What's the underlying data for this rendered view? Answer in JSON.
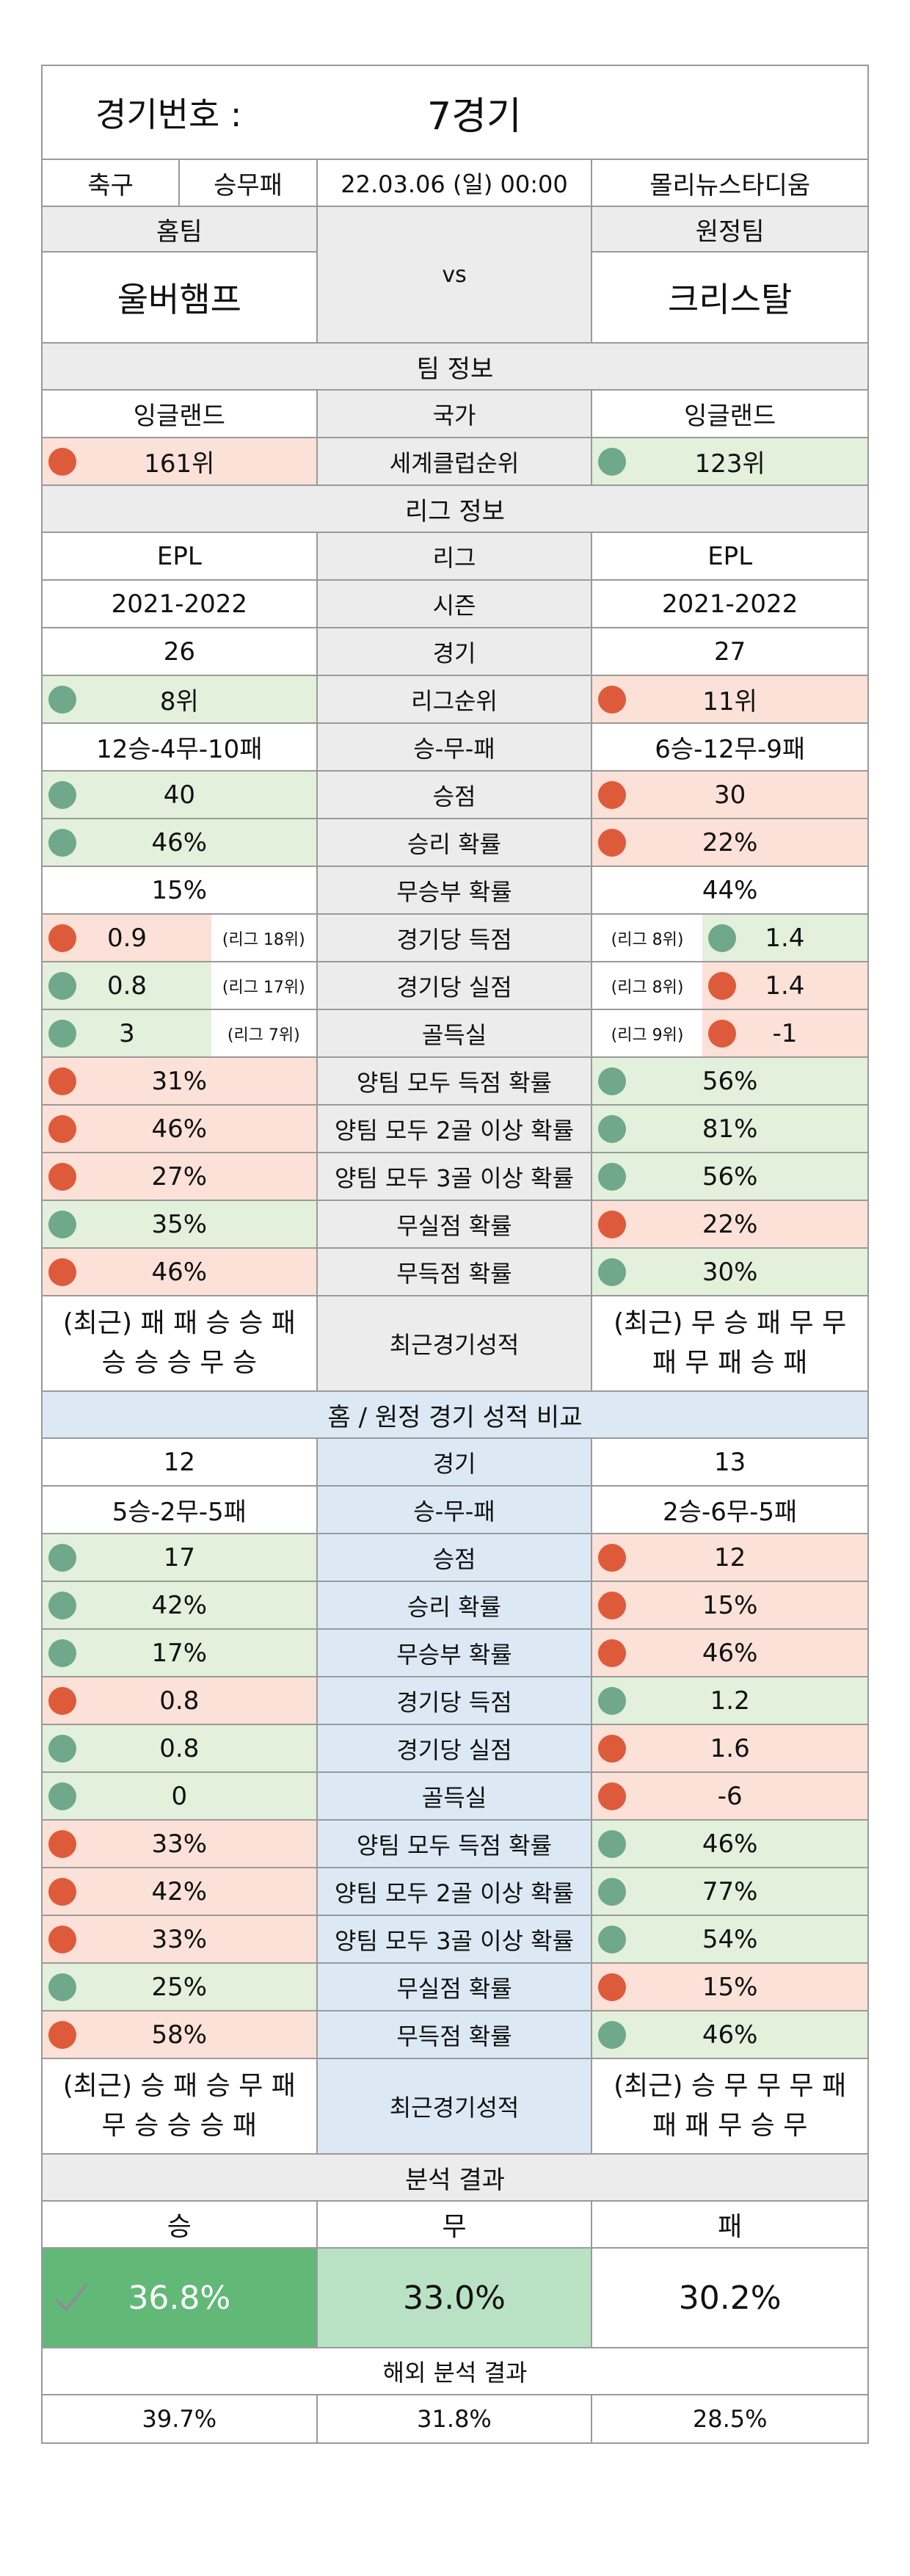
{
  "header": {
    "label": "경기번호 :",
    "number": "7경기",
    "sport": "축구",
    "bet_type": "승무패",
    "datetime": "22.03.06 (일) 00:00",
    "stadium": "몰리뉴스타디움",
    "home_label": "홈팀",
    "away_label": "원정팀",
    "vs": "vs",
    "home_team": "울버햄프",
    "away_team": "크리스탈"
  },
  "team_info": {
    "title": "팀 정보",
    "rows": [
      {
        "home": "잉글랜드",
        "label": "국가",
        "away": "잉글랜드"
      },
      {
        "home": "161위",
        "label": "세계클럽순위",
        "away": "123위"
      }
    ]
  },
  "league_info": {
    "title": "리그 정보",
    "plain_rows": [
      {
        "home": "EPL",
        "label": "리그",
        "away": "EPL"
      },
      {
        "home": "2021-2022",
        "label": "시즌",
        "away": "2021-2022"
      },
      {
        "home": "26",
        "label": "경기",
        "away": "27"
      }
    ],
    "league_rank": {
      "home": "8위",
      "label": "리그순위",
      "away": "11위"
    },
    "wdl": {
      "home": "12승-4무-10패",
      "label": "승-무-패",
      "away": "6승-12무-9패"
    },
    "points": {
      "home": "40",
      "label": "승점",
      "away": "30"
    },
    "win_prob": {
      "home": "46%",
      "label": "승리 확률",
      "away": "22%"
    },
    "draw_prob": {
      "home": "15%",
      "label": "무승부 확률",
      "away": "44%"
    },
    "ranked_rows": [
      {
        "home": "0.9",
        "home_note": "(리그 18위)",
        "label": "경기당 득점",
        "away_note": "(리그 8위)",
        "away": "1.4"
      },
      {
        "home": "0.8",
        "home_note": "(리그 17위)",
        "label": "경기당 실점",
        "away_note": "(리그 8위)",
        "away": "1.4"
      },
      {
        "home": "3",
        "home_note": "(리그 7위)",
        "label": "골득실",
        "away_note": "(리그 9위)",
        "away": "-1"
      }
    ],
    "prob_rows": [
      {
        "home": "31%",
        "label": "양팀 모두 득점 확률",
        "away": "56%"
      },
      {
        "home": "46%",
        "label": "양팀 모두 2골 이상 확률",
        "away": "81%"
      },
      {
        "home": "27%",
        "label": "양팀 모두 3골 이상 확률",
        "away": "56%"
      },
      {
        "home": "35%",
        "label": "무실점 확률",
        "away": "22%"
      },
      {
        "home": "46%",
        "label": "무득점 확률",
        "away": "30%"
      }
    ],
    "recent": {
      "home_line1": "(최근) 패 패 승 승 패",
      "home_line2": "승 승 승 무 승",
      "label": "최근경기성적",
      "away_line1": "(최근) 무 승 패 무 무",
      "away_line2": "패 무 패 승 패"
    }
  },
  "home_away": {
    "title": "홈 / 원정 경기 성적 비교",
    "plain_rows": [
      {
        "home": "12",
        "label": "경기",
        "away": "13"
      },
      {
        "home": "5승-2무-5패",
        "label": "승-무-패",
        "away": "2승-6무-5패"
      }
    ],
    "stat_rows": [
      {
        "home": "17",
        "label": "승점",
        "away": "12"
      },
      {
        "home": "42%",
        "label": "승리 확률",
        "away": "15%"
      },
      {
        "home": "17%",
        "label": "무승부 확률",
        "away": "46%"
      },
      {
        "home": "0.8",
        "label": "경기당 득점",
        "away": "1.2"
      },
      {
        "home": "0.8",
        "label": "경기당 실점",
        "away": "1.6"
      },
      {
        "home": "0",
        "label": "골득실",
        "away": "-6"
      },
      {
        "home": "33%",
        "label": "양팀 모두 득점 확률",
        "away": "46%"
      },
      {
        "home": "42%",
        "label": "양팀 모두 2골 이상 확률",
        "away": "77%"
      },
      {
        "home": "33%",
        "label": "양팀 모두 3골 이상 확률",
        "away": "54%"
      },
      {
        "home": "25%",
        "label": "무실점 확률",
        "away": "15%"
      },
      {
        "home": "58%",
        "label": "무득점 확률",
        "away": "46%"
      }
    ],
    "recent": {
      "home_line1": "(최근) 승 패 승 무 패",
      "home_line2": "무 승 승 승 패",
      "label": "최근경기성적",
      "away_line1": "(최근) 승 무 무 무 패",
      "away_line2": "패 패 무 승 무"
    }
  },
  "analysis": {
    "title": "분석 결과",
    "win_label": "승",
    "draw_label": "무",
    "lose_label": "패",
    "win": "36.8%",
    "draw": "33.0%",
    "lose": "30.2%",
    "overseas_title": "해외 분석 결과",
    "overseas_win": "39.7%",
    "overseas_draw": "31.8%",
    "overseas_lose": "28.5%"
  },
  "colors": {
    "red_dot": "#dd5b3b",
    "green_dot": "#6fa88a",
    "red_bg": "#fbe1d7",
    "green_bg": "#e3f0dc",
    "gray_bg": "#ececec",
    "blue_bg": "#dce9f5",
    "win_bg": "#62b977",
    "draw_bg": "#b9e2c5"
  },
  "icons": {
    "win_check": "check-icon"
  }
}
